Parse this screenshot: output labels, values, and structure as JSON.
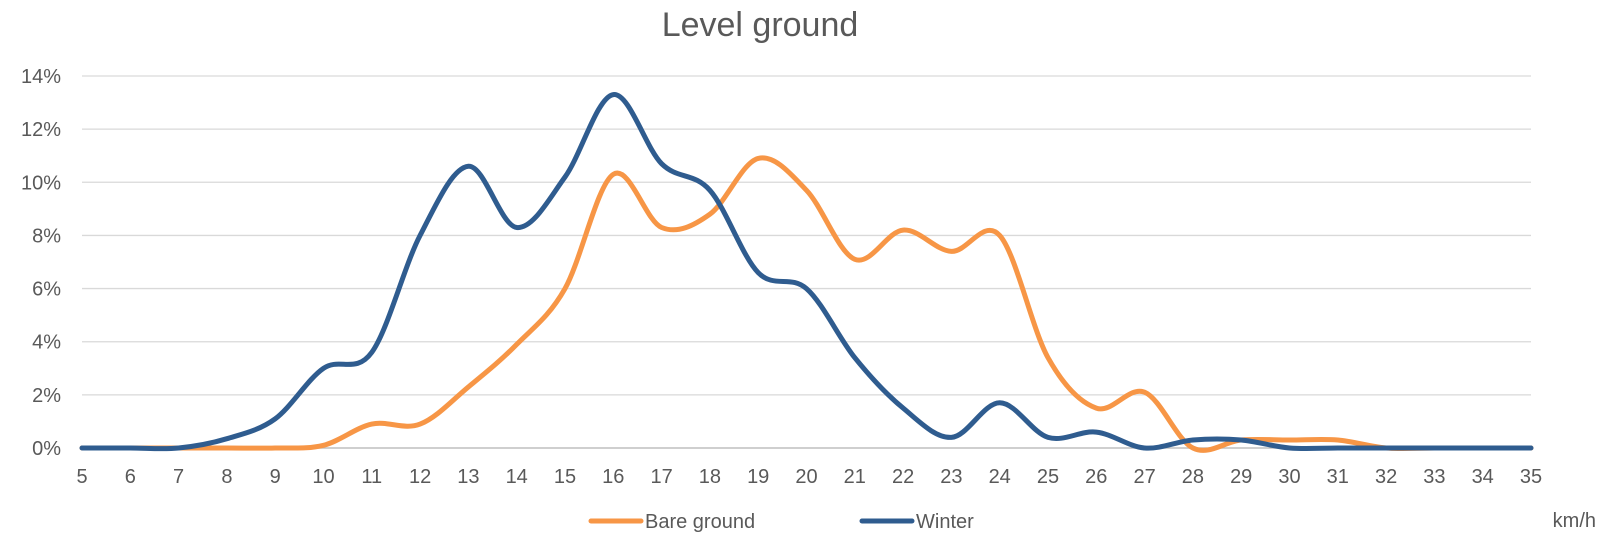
{
  "chart_data": {
    "type": "line",
    "title": "Level ground",
    "xlabel": "km/h",
    "ylabel": "",
    "x": [
      5,
      6,
      7,
      8,
      9,
      10,
      11,
      12,
      13,
      14,
      15,
      16,
      17,
      18,
      19,
      20,
      21,
      22,
      23,
      24,
      25,
      26,
      27,
      28,
      29,
      30,
      31,
      32,
      33,
      34,
      35
    ],
    "y_ticks": [
      "0%",
      "2%",
      "4%",
      "6%",
      "8%",
      "10%",
      "12%",
      "14%"
    ],
    "ylim": [
      0,
      14
    ],
    "grid": true,
    "legend_position": "bottom",
    "series": [
      {
        "name": "Bare ground",
        "color": "#F79646",
        "values": [
          0,
          0,
          0,
          0,
          0,
          0.1,
          0.9,
          0.9,
          2.3,
          3.9,
          6.0,
          10.3,
          8.3,
          8.8,
          10.9,
          9.7,
          7.1,
          8.2,
          7.4,
          8.0,
          3.4,
          1.5,
          2.1,
          0,
          0.3,
          0.3,
          0.3,
          0,
          0,
          0,
          0
        ]
      },
      {
        "name": "Winter",
        "color": "#2F5C8F",
        "values": [
          0,
          0,
          0,
          0.35,
          1.1,
          3.0,
          3.6,
          8.0,
          10.6,
          8.3,
          10.2,
          13.3,
          10.7,
          9.7,
          6.6,
          6.0,
          3.4,
          1.5,
          0.4,
          1.7,
          0.4,
          0.6,
          0,
          0.3,
          0.3,
          0,
          0,
          0,
          0,
          0,
          0
        ]
      }
    ]
  }
}
